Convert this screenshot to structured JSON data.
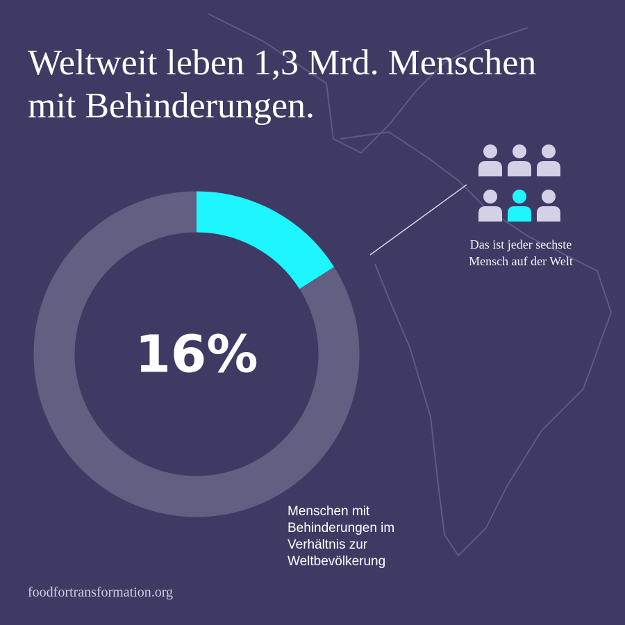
{
  "chart_data": {
    "type": "donut",
    "title": "Weltweit leben 1,3 Mrd. Menschen mit Behinderungen.",
    "categories": [
      "Menschen mit Behinderungen im Verhältnis zur Weltbevölkerung"
    ],
    "values": [
      16
    ],
    "value_labels": [
      "16%"
    ],
    "color": "#1ef6ff",
    "track_color": "#625f82",
    "annotation": "Das ist jeder sechste Mensch auf der Welt",
    "source": "foodfortransformation.org"
  }
}
